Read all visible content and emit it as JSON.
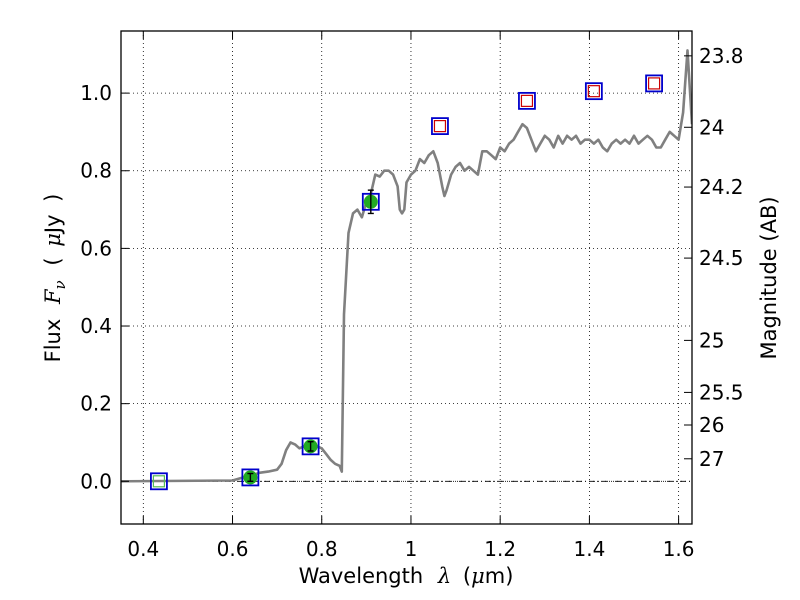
{
  "chart_data": {
    "type": "scatter",
    "title": "",
    "xlabel": {
      "prefix": "Wavelength",
      "symbol": "λ",
      "open": "(",
      "unit_math": "μ",
      "unit": "m",
      "close": ")"
    },
    "ylabel": {
      "prefix": "Flux",
      "symbol": "F",
      "subscript": "ν",
      "open": "(",
      "unit_math": "μ",
      "unit": "Jy",
      "close": ")"
    },
    "y2label": "Magnitude (AB)",
    "xlim": [
      0.35,
      1.63
    ],
    "ylim": [
      -0.11,
      1.16
    ],
    "grid": true,
    "x_ticks": [
      {
        "value": 0.4,
        "label": "0.4"
      },
      {
        "value": 0.6,
        "label": "0.6"
      },
      {
        "value": 0.8,
        "label": "0.8"
      },
      {
        "value": 1.0,
        "label": "1"
      },
      {
        "value": 1.2,
        "label": "1.2"
      },
      {
        "value": 1.4,
        "label": "1.4"
      },
      {
        "value": 1.6,
        "label": "1.6"
      }
    ],
    "y_ticks": [
      {
        "value": 0.0,
        "label": "0.0"
      },
      {
        "value": 0.2,
        "label": "0.2"
      },
      {
        "value": 0.4,
        "label": "0.4"
      },
      {
        "value": 0.6,
        "label": "0.6"
      },
      {
        "value": 0.8,
        "label": "0.8"
      },
      {
        "value": 1.0,
        "label": "1.0"
      }
    ],
    "y2_ticks": [
      {
        "label": "23.8",
        "flux": 1.096
      },
      {
        "label": "24",
        "flux": 0.912
      },
      {
        "label": "24.2",
        "flux": 0.758
      },
      {
        "label": "24.5",
        "flux": 0.575
      },
      {
        "label": "25",
        "flux": 0.363
      },
      {
        "label": "25.5",
        "flux": 0.229
      },
      {
        "label": "26",
        "flux": 0.145
      },
      {
        "label": "27",
        "flux": 0.058
      }
    ],
    "zero_line": {
      "y": 0
    },
    "series": [
      {
        "role": "model_spectrum",
        "color": "#808080",
        "points": [
          [
            0.35,
            0.0
          ],
          [
            0.6,
            0.002
          ],
          [
            0.63,
            0.012
          ],
          [
            0.65,
            0.018
          ],
          [
            0.66,
            0.022
          ],
          [
            0.68,
            0.025
          ],
          [
            0.7,
            0.03
          ],
          [
            0.71,
            0.045
          ],
          [
            0.72,
            0.08
          ],
          [
            0.73,
            0.1
          ],
          [
            0.74,
            0.095
          ],
          [
            0.75,
            0.085
          ],
          [
            0.76,
            0.09
          ],
          [
            0.77,
            0.082
          ],
          [
            0.78,
            0.095
          ],
          [
            0.79,
            0.09
          ],
          [
            0.8,
            0.085
          ],
          [
            0.81,
            0.07
          ],
          [
            0.82,
            0.055
          ],
          [
            0.83,
            0.045
          ],
          [
            0.84,
            0.04
          ],
          [
            0.845,
            0.025
          ],
          [
            0.85,
            0.43
          ],
          [
            0.86,
            0.64
          ],
          [
            0.87,
            0.69
          ],
          [
            0.88,
            0.7
          ],
          [
            0.89,
            0.68
          ],
          [
            0.9,
            0.72
          ],
          [
            0.91,
            0.74
          ],
          [
            0.92,
            0.79
          ],
          [
            0.93,
            0.785
          ],
          [
            0.94,
            0.8
          ],
          [
            0.95,
            0.8
          ],
          [
            0.96,
            0.79
          ],
          [
            0.97,
            0.76
          ],
          [
            0.975,
            0.7
          ],
          [
            0.98,
            0.69
          ],
          [
            0.985,
            0.7
          ],
          [
            0.99,
            0.77
          ],
          [
            1.0,
            0.79
          ],
          [
            1.01,
            0.8
          ],
          [
            1.02,
            0.83
          ],
          [
            1.03,
            0.82
          ],
          [
            1.04,
            0.84
          ],
          [
            1.05,
            0.85
          ],
          [
            1.06,
            0.82
          ],
          [
            1.07,
            0.76
          ],
          [
            1.075,
            0.735
          ],
          [
            1.08,
            0.75
          ],
          [
            1.09,
            0.79
          ],
          [
            1.1,
            0.81
          ],
          [
            1.11,
            0.82
          ],
          [
            1.12,
            0.8
          ],
          [
            1.13,
            0.81
          ],
          [
            1.14,
            0.8
          ],
          [
            1.15,
            0.79
          ],
          [
            1.16,
            0.85
          ],
          [
            1.17,
            0.85
          ],
          [
            1.18,
            0.84
          ],
          [
            1.19,
            0.83
          ],
          [
            1.2,
            0.86
          ],
          [
            1.21,
            0.85
          ],
          [
            1.22,
            0.87
          ],
          [
            1.23,
            0.88
          ],
          [
            1.24,
            0.9
          ],
          [
            1.25,
            0.92
          ],
          [
            1.26,
            0.91
          ],
          [
            1.27,
            0.88
          ],
          [
            1.28,
            0.85
          ],
          [
            1.29,
            0.87
          ],
          [
            1.3,
            0.89
          ],
          [
            1.31,
            0.88
          ],
          [
            1.32,
            0.86
          ],
          [
            1.33,
            0.89
          ],
          [
            1.34,
            0.87
          ],
          [
            1.35,
            0.89
          ],
          [
            1.36,
            0.88
          ],
          [
            1.37,
            0.89
          ],
          [
            1.38,
            0.87
          ],
          [
            1.39,
            0.88
          ],
          [
            1.4,
            0.88
          ],
          [
            1.41,
            0.87
          ],
          [
            1.42,
            0.88
          ],
          [
            1.43,
            0.86
          ],
          [
            1.44,
            0.85
          ],
          [
            1.45,
            0.87
          ],
          [
            1.46,
            0.88
          ],
          [
            1.47,
            0.87
          ],
          [
            1.48,
            0.88
          ],
          [
            1.49,
            0.87
          ],
          [
            1.5,
            0.89
          ],
          [
            1.51,
            0.87
          ],
          [
            1.52,
            0.88
          ],
          [
            1.53,
            0.89
          ],
          [
            1.54,
            0.88
          ],
          [
            1.55,
            0.86
          ],
          [
            1.56,
            0.86
          ],
          [
            1.57,
            0.88
          ],
          [
            1.58,
            0.9
          ],
          [
            1.59,
            0.89
          ],
          [
            1.6,
            0.88
          ],
          [
            1.61,
            0.95
          ],
          [
            1.62,
            1.11
          ],
          [
            1.63,
            0.92
          ]
        ]
      },
      {
        "role": "model_photometry",
        "marker": "square",
        "color": "#0000cc",
        "points": [
          [
            0.435,
            0.0
          ],
          [
            0.64,
            0.01
          ],
          [
            0.775,
            0.09
          ],
          [
            0.91,
            0.72
          ],
          [
            1.065,
            0.915
          ],
          [
            1.26,
            0.98
          ],
          [
            1.41,
            1.005
          ],
          [
            1.545,
            1.025
          ]
        ]
      },
      {
        "role": "upper_limits",
        "marker": "square",
        "color": "#cc0000",
        "points": [
          [
            1.065,
            0.915
          ],
          [
            1.26,
            0.98
          ],
          [
            1.41,
            1.005
          ],
          [
            1.545,
            1.025
          ]
        ]
      },
      {
        "role": "non_detection",
        "marker": "square",
        "color": "#55bb55",
        "points": [
          [
            0.435,
            0.0
          ]
        ]
      },
      {
        "role": "detections",
        "marker": "circle",
        "color": "#22aa22",
        "points": [
          {
            "x": 0.64,
            "y": 0.01,
            "err": 0.01
          },
          {
            "x": 0.775,
            "y": 0.09,
            "err": 0.012
          },
          {
            "x": 0.91,
            "y": 0.72,
            "err": 0.03
          }
        ]
      }
    ]
  }
}
